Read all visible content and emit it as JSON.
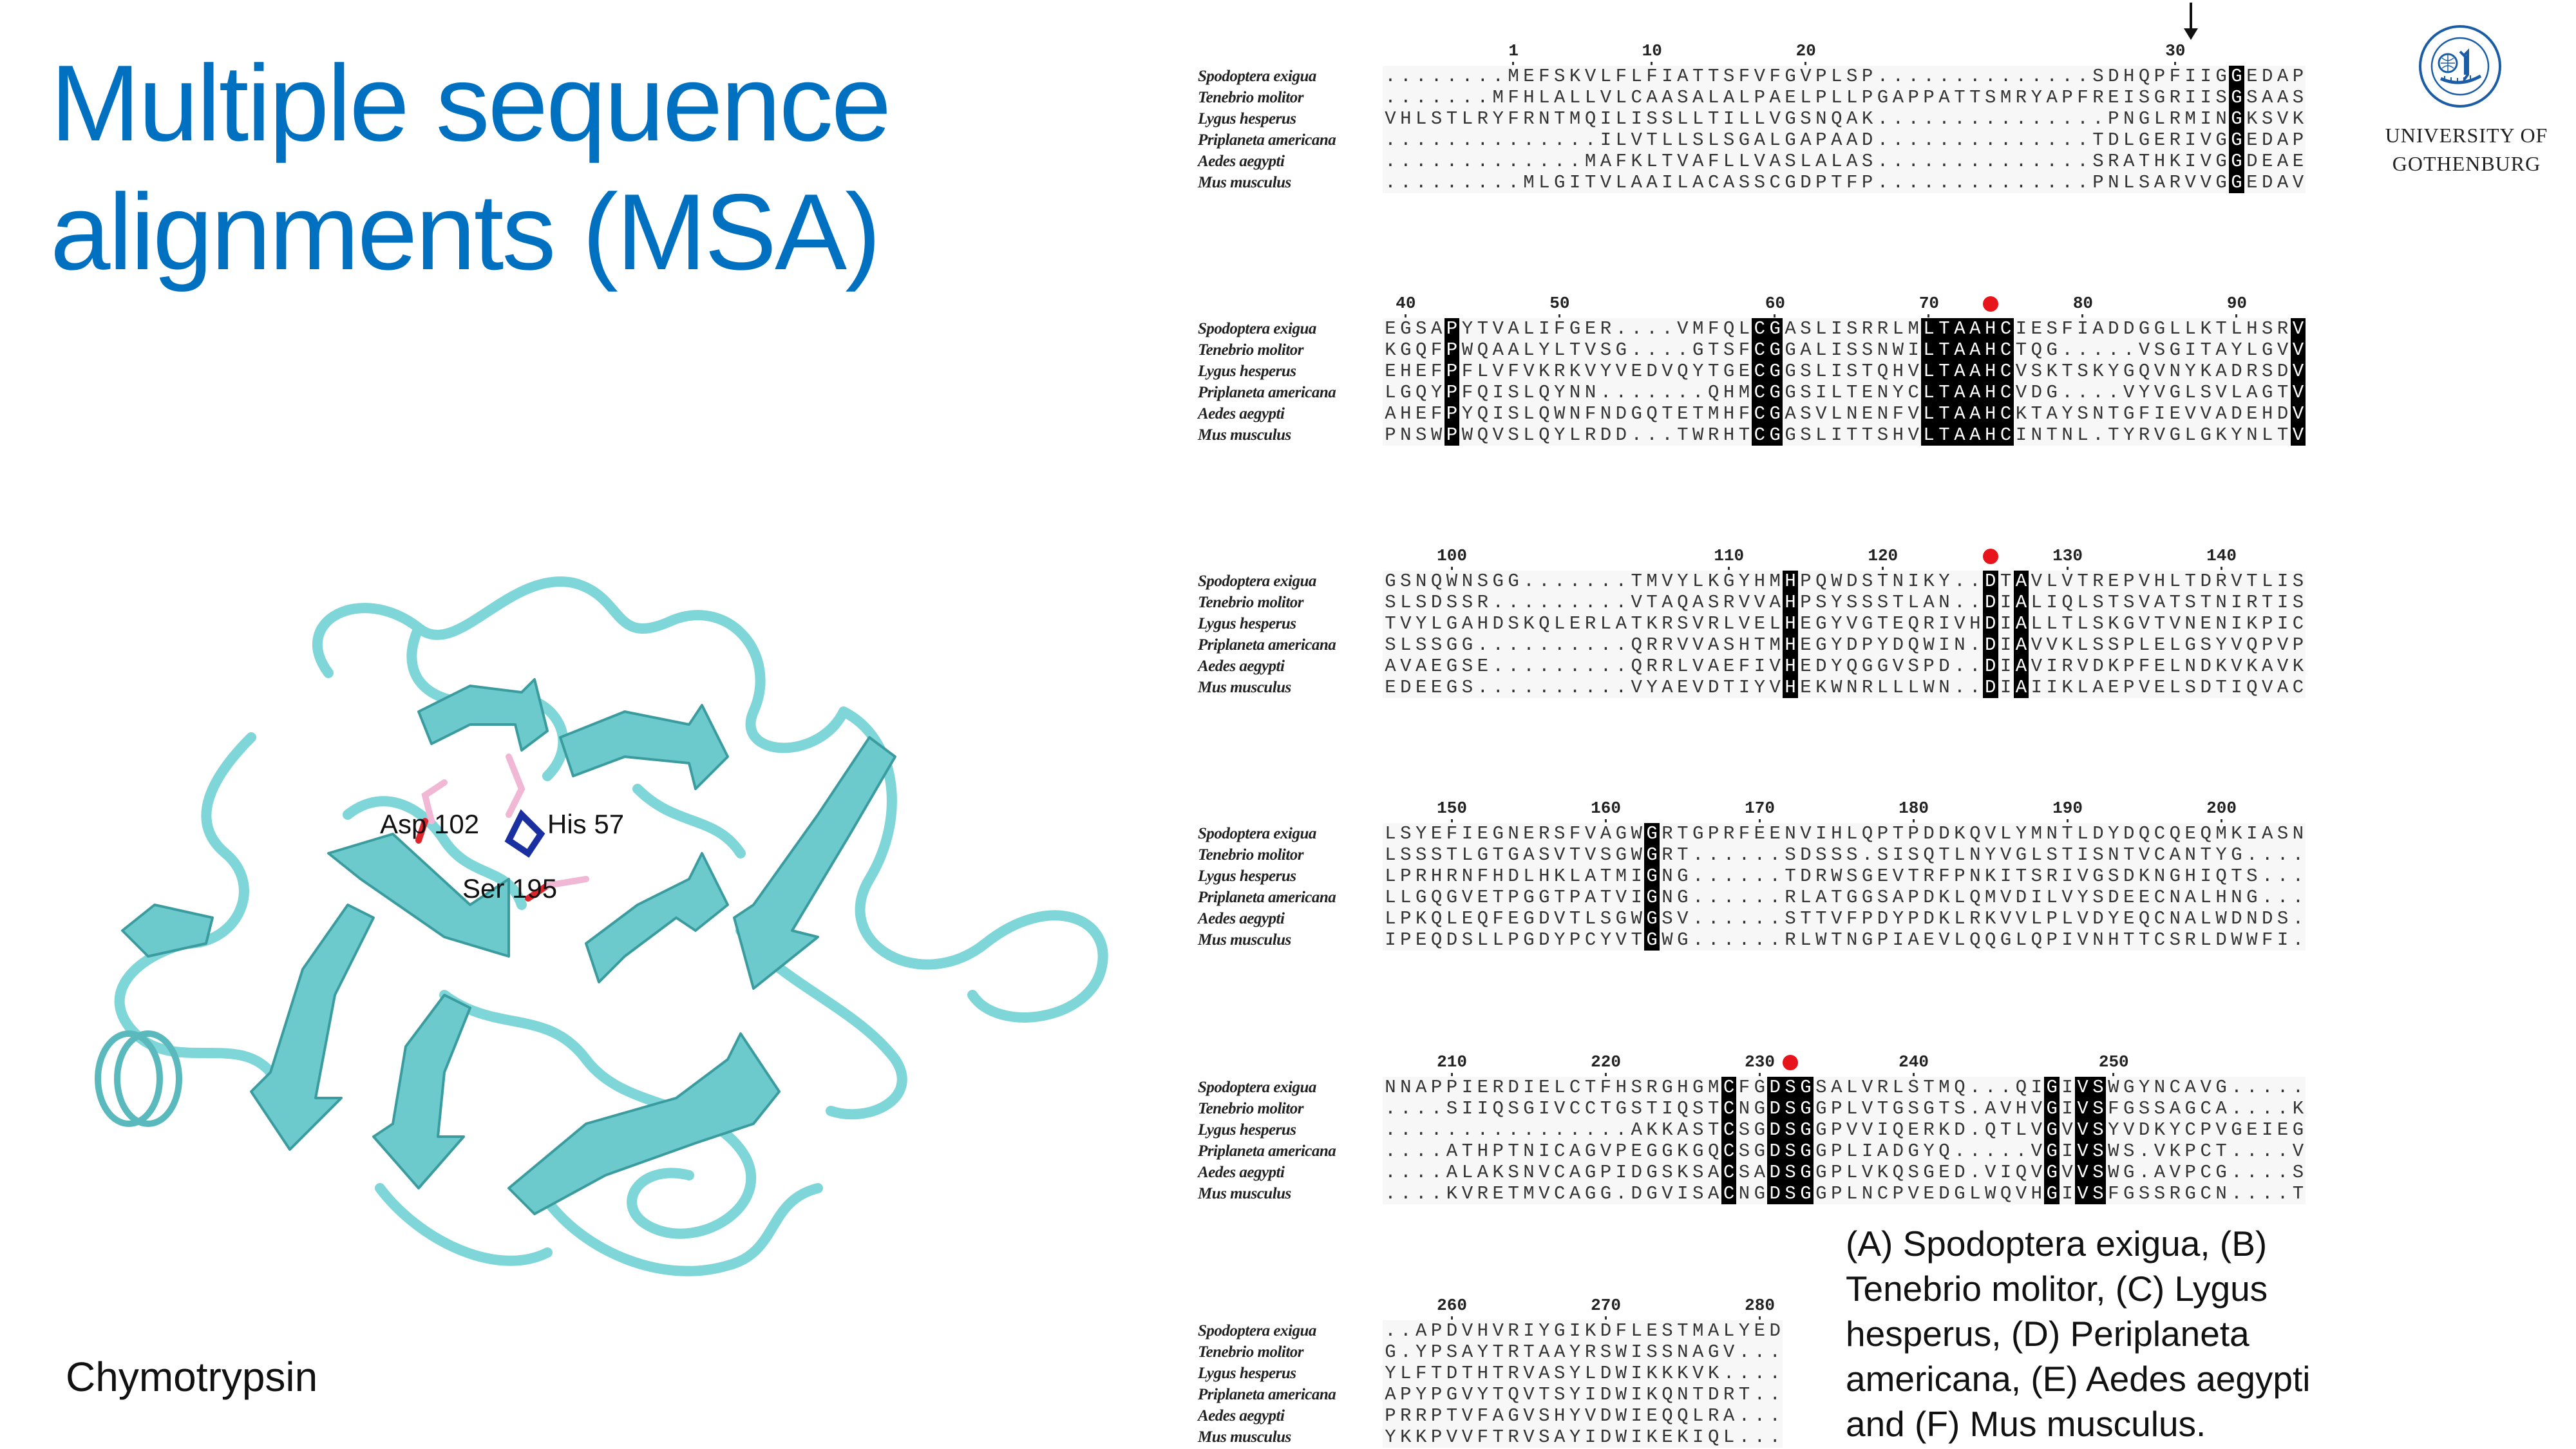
{
  "title": {
    "line1": "Multiple sequence",
    "line2": "alignments (MSA)",
    "color": "#0070c0"
  },
  "logo": {
    "line1": "UNIVERSITY OF",
    "line2": "GOTHENBURG",
    "seal_text": "UNIVERSITAS GOTHOBURGENSIS 1891",
    "color": "#1a5da6"
  },
  "structure": {
    "labels": {
      "asp": "Asp 102",
      "his": "His 57",
      "ser": "Ser 195"
    },
    "name": "Chymotrypsin",
    "ribbon_color": "#7fd6d8"
  },
  "caption": [
    "(A) Spodoptera exigua, (B)",
    "Tenebrio molitor, (C) Lygus",
    "hesperus, (D) Periplaneta",
    "americana, (E) Aedes aegypti",
    "and (F) Mus musculus."
  ],
  "species": [
    "Spodoptera exigua",
    "Tenebrio molitor",
    "Lygus hesperus",
    "Priplaneta americana",
    "Aedes aegypti",
    "Mus musculus"
  ],
  "alignment": {
    "highlight_color": "#000000",
    "marker_color": "#e8141c",
    "blocks": [
      {
        "ticks": [
          {
            "label": "1",
            "col": 8
          },
          {
            "label": "10",
            "col": 17
          },
          {
            "label": "20",
            "col": 27
          },
          {
            "label": "30",
            "col": 51
          }
        ],
        "arrow_col": 52,
        "red_dot_col": null,
        "highlight_cols": [
          55
        ],
        "rows": [
          "........MEFSKVLFLFIATTSFVFGVPLSP..............SDHQPFIIGGEDAP",
          ".......MFHLALLVLCAASALALPAELPLLPGAPPATTSMRYAPFREISGRIISGSAAS",
          "VHLSTLRYFRNTMQILISSLLTILLVGSNQAK...............PNGLRMINGKSVK",
          "..............ILVTLLSLSGALGAPAAD..............TDLGERIVGGEDAP",
          ".............MAFKLTVAFLLVASLALAS..............SRATHKIVGGDEAE",
          ".........MLGITVLAAILACASSCGDPTFP..............PNLSARVVGGEDAV"
        ]
      },
      {
        "ticks": [
          {
            "label": "40",
            "col": 1
          },
          {
            "label": "50",
            "col": 11
          },
          {
            "label": "60",
            "col": 25
          },
          {
            "label": "70",
            "col": 35
          },
          {
            "label": "80",
            "col": 45
          },
          {
            "label": "90",
            "col": 55
          }
        ],
        "arrow_col": null,
        "red_dot_col": 39,
        "highlight_cols": [
          4,
          24,
          25,
          35,
          36,
          37,
          38,
          39,
          40,
          59
        ],
        "rows": [
          "EGSAPYTVALIFGER....VMFQLCGASLISRRLMLTAAHCIESFIADDGGLLKTLHSRV",
          "KGQFPWQAALYLTVSG....GTSFCGGALISSNWILTAAHCTQG.....VSGITAYLGVV",
          "EHEFPFLVFVKRKVYVEDVQYTGECGGSLISTQHVLTAAHCVSKTSKYGQVNYKADRSDV",
          "LGQYPFQISLQYNN.......QHMCGGSILTENYCLTAAHCVDG....VYVGLSVLAGTV",
          "AHEFPYQISLQWNFNDGQTETMHFCGASVLNENFVLTAAHCKTAYSNTGFIEVVADEHDV",
          "PNSWPWQVSLQYLRDD...TWRHTCGGSLITTSHVLTAAHCINTNL.TYRVGLGKYNLTV"
        ]
      },
      {
        "ticks": [
          {
            "label": "100",
            "col": 4
          },
          {
            "label": "110",
            "col": 22
          },
          {
            "label": "120",
            "col": 32
          },
          {
            "label": "130",
            "col": 44
          },
          {
            "label": "140",
            "col": 54
          }
        ],
        "arrow_col": null,
        "red_dot_col": 39,
        "highlight_cols": [
          26,
          39,
          41
        ],
        "rows": [
          "GSNQWNSGG.......TMVYLKGYHMHPQWDSTNIKY..DTAVLVTREPVHLTDRVTLIS",
          "SLSDSSR.........VTAQASRVVAHPSYSSSTLAN..DIALIQLSTSVATSTNIRTIS",
          "TVYLGAHDSKQLERLATKRSVRLVELHEGYVGTEQRIVHDIALLTLSKGVTVNENIKPIC",
          "SLSSGG..........QRRVVASHTMHEGYDPYDQWIN.DIAVVKLSSPLELGSYVQPVP",
          "AVAEGSE.........QRRLVAEFIVHEDYQGGVSPD..DIAVIRVDKPFELNDKVKAVK",
          "EDEEGS..........VYAEVDTIYVHEKWNRLLLWN..DIAIIKLAEPVELSDTIQVAC"
        ]
      },
      {
        "ticks": [
          {
            "label": "150",
            "col": 4
          },
          {
            "label": "160",
            "col": 14
          },
          {
            "label": "170",
            "col": 24
          },
          {
            "label": "180",
            "col": 34
          },
          {
            "label": "190",
            "col": 44
          },
          {
            "label": "200",
            "col": 54
          }
        ],
        "arrow_col": null,
        "red_dot_col": null,
        "highlight_cols": [
          17
        ],
        "rows": [
          "LSYEFIEGNERSFVAGWGRTGPRFEENVIHLQPTPDDKQVLYMNTLDYDQCQEQMKIASN",
          "LSSSTLGTGASVTVSGWGRT......SDSSS.SISQTLNYVGLSTISNTVCANTYG....",
          "LPRHRNFHDLHKLATMIGNG......TDRWSGEVTRFPNKITSRIVGSDKNGHIQTS...",
          "LLGQGVETPGGTPATVIGNG......RLATGGSAPDKLQMVDILVYSDEECNALHNG...",
          "LPKQLEQFEGDVTLSGWGSV......STTVFPDYPDKLRKVVLPLVDYEQCNALWDNDS.",
          "IPEQDSLLPGDYPCYVTGWG......RLWTNGPIAEVLQQGLQPIVNHTTCSRLDWWFI."
        ]
      },
      {
        "ticks": [
          {
            "label": "210",
            "col": 4
          },
          {
            "label": "220",
            "col": 14
          },
          {
            "label": "230",
            "col": 24
          },
          {
            "label": "240",
            "col": 34
          },
          {
            "label": "250",
            "col": 47
          }
        ],
        "arrow_col": null,
        "red_dot_col": 26,
        "highlight_cols": [
          22,
          25,
          26,
          27,
          43,
          45,
          46
        ],
        "rows": [
          "NNAPPIERDIELCTFHSRGHGMCFGDSGSALVRLSTMQ...QIGIVSWGYNCAVG.....",
          "....SIIQSGIVCCTGSTIQSTCNGDSGGPLVTGSGTS.AVHVGIVSFGSSAGCA....K",
          "................AKKASTCSGDSGGPVVIQERKD.QTLVGVVSYVDKYCPVGEIEG",
          "....ATHPTNICAGVPEGGKGQCSGDSGGPLIADGYQ.....VGIVSWS.VKPCT....V",
          "....ALAKSNVCAGPIDGSKSACSADSGGPLVKQSGED.VIQVGVVSWG.AVPCG....S",
          "....KVRETMVCAGG.DGVISACNGDSGGPLNCPVEDGLWQVHGIVSFGSSRGCN....T"
        ]
      },
      {
        "ticks": [
          {
            "label": "260",
            "col": 4
          },
          {
            "label": "270",
            "col": 14
          },
          {
            "label": "280",
            "col": 24
          }
        ],
        "arrow_col": null,
        "red_dot_col": null,
        "highlight_cols": [],
        "rows": [
          "..APDVHVRIYGIKDFLESTMALYED",
          "G.YPSAYTRTAAYRSWISSNAGV...",
          "YLFTDTHTRVASYLDWIKKKVK....",
          "APYPGVYTQVTSYIDWIKQNTDRT..",
          "PRRPTVFAGVSHYVDWIEQQLRA...",
          "YKKPVVFTRVSAYIDWIKEKIQL..."
        ]
      }
    ]
  }
}
